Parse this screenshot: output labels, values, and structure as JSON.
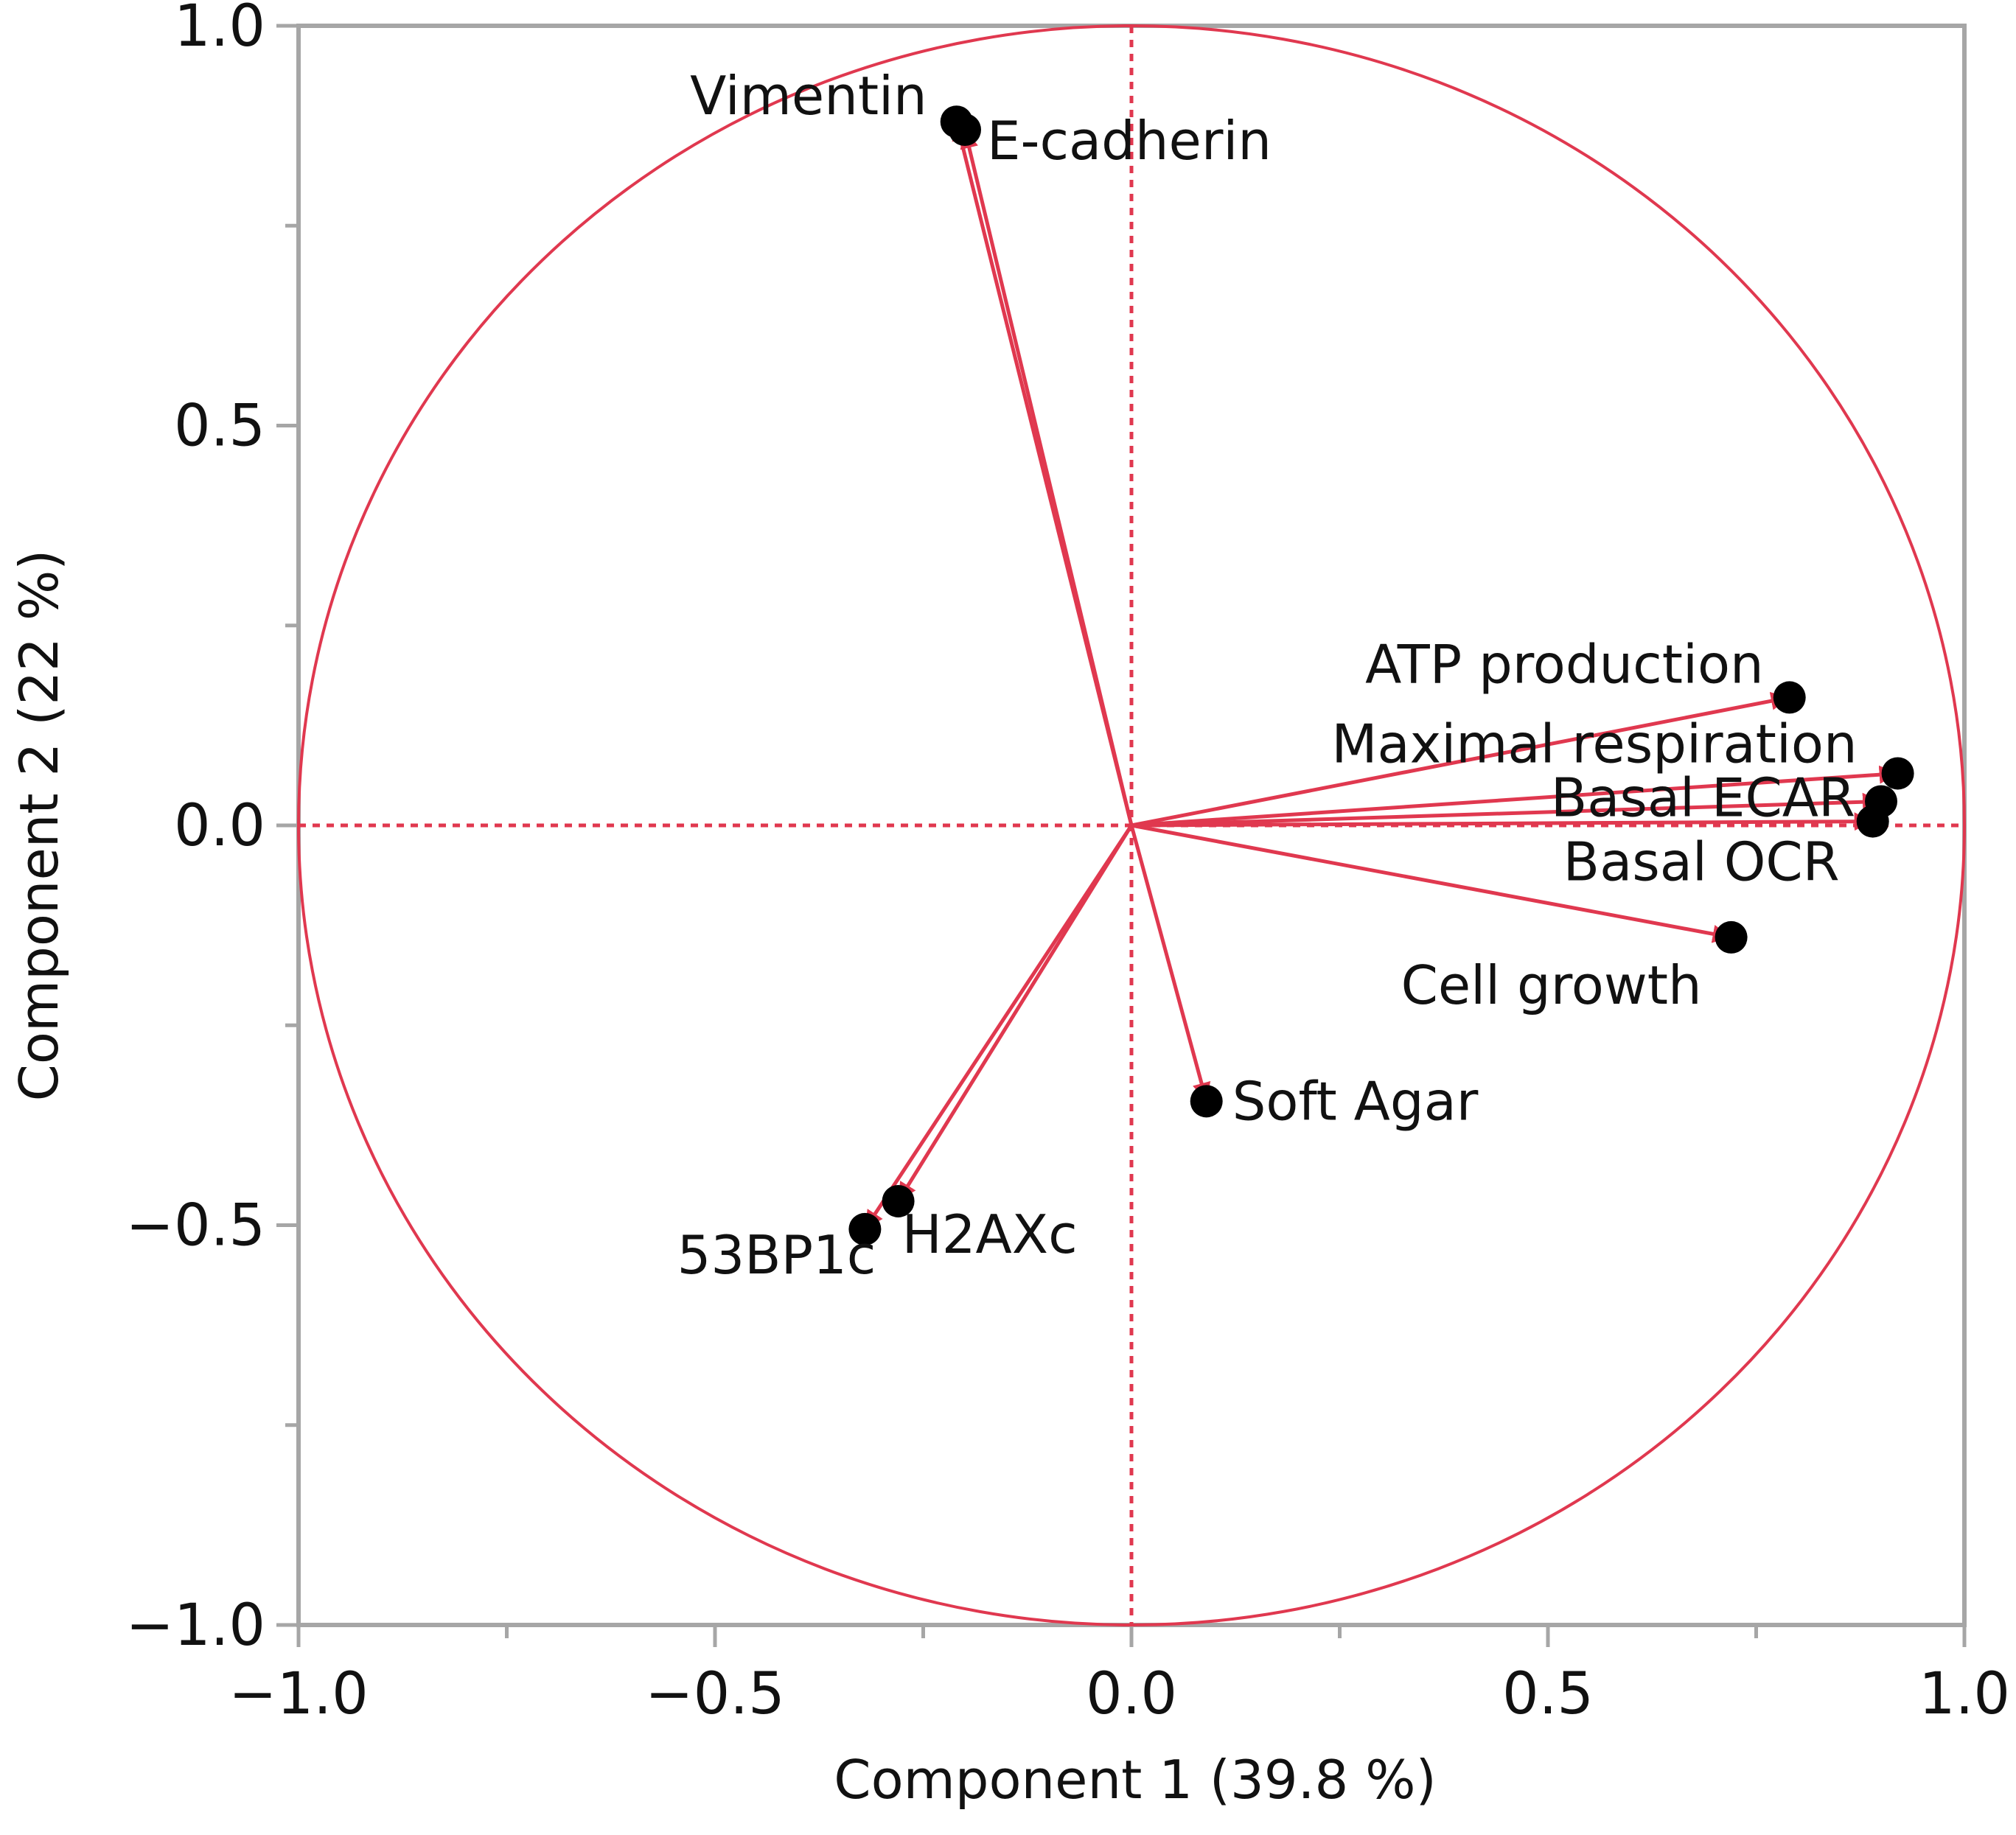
{
  "chart_data": {
    "type": "scatter",
    "subtype": "pca-loading-plot",
    "title": "",
    "xlabel": "Component 1  (39.8 %)",
    "ylabel": "Component 2  (22 %)",
    "xlim": [
      -1.0,
      1.0
    ],
    "ylim": [
      -1.0,
      1.0
    ],
    "x_ticks": [
      -1.0,
      -0.5,
      0.0,
      0.5,
      1.0
    ],
    "y_ticks": [
      -1.0,
      -0.5,
      0.0,
      0.5,
      1.0
    ],
    "x_tick_labels": [
      "−1.0",
      "−0.5",
      "0.0",
      "0.5",
      "1.0"
    ],
    "y_tick_labels": [
      "−1.0",
      "−0.5",
      "0.0",
      "0.5",
      "1.0"
    ],
    "unit_circle": true,
    "reference_lines": [
      0.0
    ],
    "points": [
      {
        "name": "Vimentin",
        "x": -0.21,
        "y": 0.88
      },
      {
        "name": "E-cadherin",
        "x": -0.2,
        "y": 0.87
      },
      {
        "name": "ATP production",
        "x": 0.79,
        "y": 0.16
      },
      {
        "name": "Maximal respiration",
        "x": 0.92,
        "y": 0.065
      },
      {
        "name": "Basal ECAR",
        "x": 0.9,
        "y": 0.03
      },
      {
        "name": "Basal OCR",
        "x": 0.89,
        "y": 0.005
      },
      {
        "name": "Cell growth",
        "x": 0.72,
        "y": -0.14
      },
      {
        "name": "Soft Agar",
        "x": 0.09,
        "y": -0.345
      },
      {
        "name": "53BP1c",
        "x": -0.32,
        "y": -0.505
      },
      {
        "name": "H2AXc",
        "x": -0.28,
        "y": -0.47
      }
    ]
  },
  "colors": {
    "accent": "#E0384F",
    "frame": "#A6A6A6",
    "point": "#000000"
  }
}
